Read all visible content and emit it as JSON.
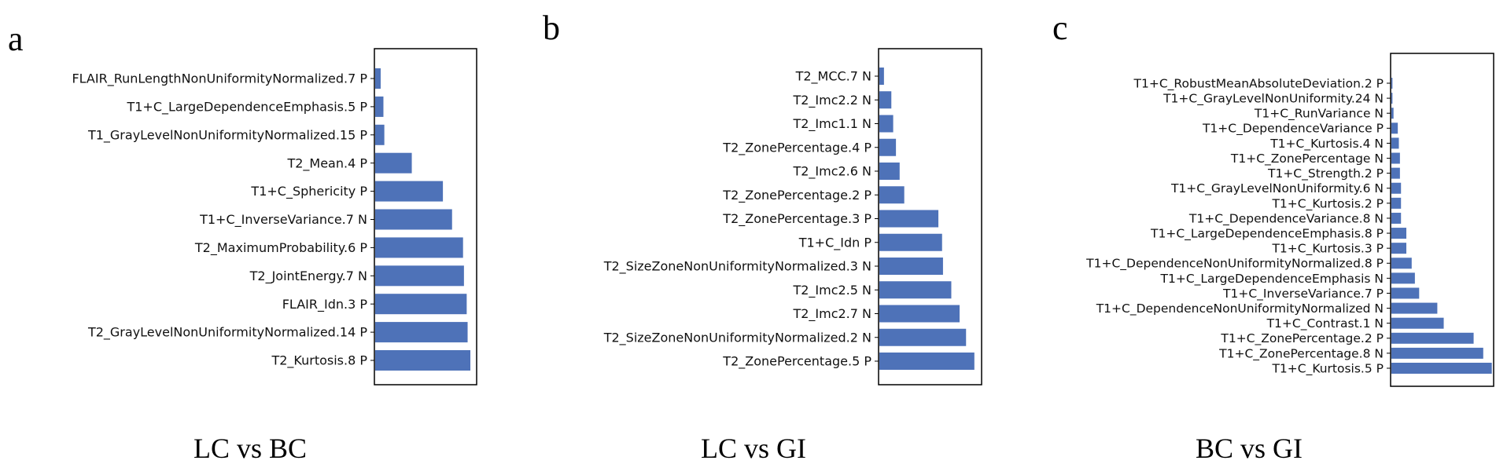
{
  "colors": {
    "bar": "#4e72b8"
  },
  "chart_data": [
    {
      "type": "bar",
      "orientation": "horizontal",
      "panel_label": "a",
      "caption": "LC vs BC",
      "xaxis_ticks": false,
      "categories": [
        "FLAIR_RunLengthNonUniformityNormalized.7 P",
        "T1+C_LargeDependenceEmphasis.5 P",
        "T1_GrayLevelNonUniformityNormalized.15 P",
        "T2_Mean.4 P",
        "T1+C_Sphericity P",
        "T1+C_InverseVariance.7 N",
        "T2_MaximumProbability.6 P",
        "T2_JointEnergy.7 N",
        "FLAIR_Idn.3 P",
        "T2_GrayLevelNonUniformityNormalized.14 P",
        "T2_Kurtosis.8 P"
      ],
      "values": [
        0.06,
        0.09,
        0.1,
        0.4,
        0.74,
        0.84,
        0.96,
        0.97,
        1.0,
        1.01,
        1.04
      ],
      "xlim": [
        0,
        1.1
      ]
    },
    {
      "type": "bar",
      "orientation": "horizontal",
      "panel_label": "b",
      "caption": "LC vs GI",
      "xaxis_ticks": false,
      "categories": [
        "T2_MCC.7 N",
        "T2_Imc2.2 N",
        "T2_Imc1.1 N",
        "T2_ZonePercentage.4 P",
        "T2_Imc2.6 N",
        "T2_ZonePercentage.2 P",
        "T2_ZonePercentage.3 P",
        "T1+C_Idn P",
        "T2_SizeZoneNonUniformityNormalized.3 N",
        "T2_Imc2.5 N",
        "T2_Imc2.7 N",
        "T2_SizeZoneNonUniformityNormalized.2 N",
        "T2_ZonePercentage.5 P"
      ],
      "values": [
        0.05,
        0.13,
        0.15,
        0.18,
        0.22,
        0.27,
        0.64,
        0.68,
        0.69,
        0.78,
        0.87,
        0.94,
        1.03
      ],
      "xlim": [
        0,
        1.1
      ]
    },
    {
      "type": "bar",
      "orientation": "horizontal",
      "panel_label": "c",
      "caption": "BC vs GI",
      "xaxis_ticks": false,
      "categories": [
        "T1+C_RobustMeanAbsoluteDeviation.2 P",
        "T1+C_GrayLevelNonUniformity.24 N",
        "T1+C_RunVariance N",
        "T1+C_DependenceVariance P",
        "T1+C_Kurtosis.4 N",
        "T1+C_ZonePercentage N",
        "T1+C_Strength.2 P",
        "T1+C_GrayLevelNonUniformity.6 N",
        "T1+C_Kurtosis.2 P",
        "T1+C_DependenceVariance.8 N",
        "T1+C_LargeDependenceEmphasis.8 P",
        "T1+C_Kurtosis.3 P",
        "T1+C_DependenceNonUniformityNormalized.8 P",
        "T1+C_LargeDependenceEmphasis N",
        "T1+C_InverseVariance.7 P",
        "T1+C_DependenceNonUniformityNormalized N",
        "T1+C_Contrast.1 N",
        "T1+C_ZonePercentage.2 P",
        "T1+C_ZonePercentage.8 N",
        "T1+C_Kurtosis.5 P"
      ],
      "values": [
        0.01,
        0.01,
        0.02,
        0.06,
        0.07,
        0.08,
        0.08,
        0.09,
        0.09,
        0.09,
        0.14,
        0.14,
        0.19,
        0.22,
        0.26,
        0.43,
        0.49,
        0.77,
        0.86,
        0.94
      ],
      "xlim": [
        0,
        0.95
      ]
    }
  ]
}
